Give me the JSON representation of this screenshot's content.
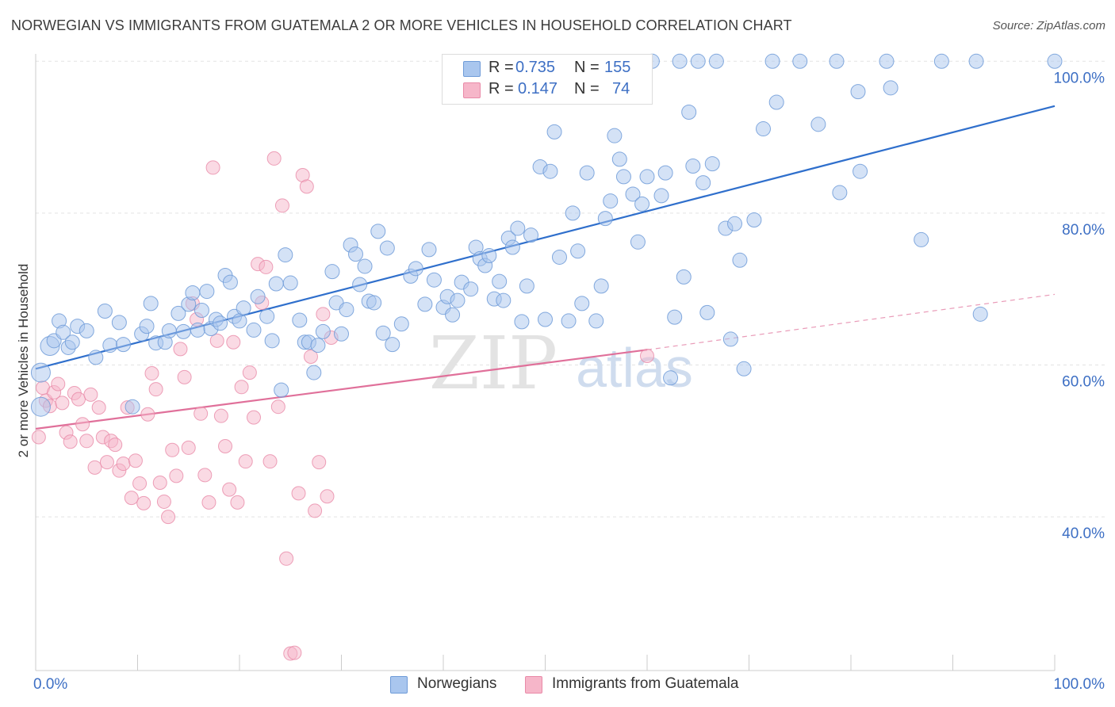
{
  "title": "NORWEGIAN VS IMMIGRANTS FROM GUATEMALA 2 OR MORE VEHICLES IN HOUSEHOLD CORRELATION CHART",
  "source_prefix": "Source:",
  "source_name": "ZipAtlas.com",
  "watermark": {
    "part1": "ZIP",
    "part2": "atlas"
  },
  "legend": {
    "items": [
      {
        "r_label": "R =",
        "r_value": "0.735",
        "n_label": "N =",
        "n_value": "155"
      },
      {
        "r_label": "R =",
        "r_value": "0.147",
        "n_label": "N =",
        "n_value": "74"
      }
    ]
  },
  "bottom_legend": {
    "series1": "Norwegians",
    "series2": "Immigrants from Guatemala"
  },
  "colors": {
    "blue_fill": "#a9c6ee",
    "blue_stroke": "#6f9bd8",
    "blue_line": "#2f6fcc",
    "pink_fill": "#f6b6c9",
    "pink_stroke": "#e98aa8",
    "pink_line": "#e0709a",
    "axis_text": "#3d6fc4"
  },
  "chart_data": {
    "type": "scatter",
    "title": "NORWEGIAN VS IMMIGRANTS FROM GUATEMALA 2 OR MORE VEHICLES IN HOUSEHOLD CORRELATION CHART",
    "xlabel": "",
    "ylabel": "2 or more Vehicles in Household",
    "xlim": [
      0,
      100
    ],
    "ylim": [
      20,
      103
    ],
    "x_tick_labels": [
      "0.0%",
      "100.0%"
    ],
    "y_ticks": [
      40,
      60,
      80,
      100
    ],
    "y_tick_labels": [
      "40.0%",
      "60.0%",
      "80.0%",
      "100.0%"
    ],
    "grid": true,
    "legend_position": "top-center",
    "series": [
      {
        "name": "Norwegians",
        "r": 0.735,
        "n": 155,
        "trend": {
          "x": [
            0,
            100
          ],
          "y": [
            59.5,
            94.1
          ]
        },
        "points": [
          [
            0.5,
            59.0
          ],
          [
            0.5,
            54.5
          ],
          [
            1.4,
            62.5
          ],
          [
            1.8,
            63.2
          ],
          [
            2.3,
            65.8
          ],
          [
            2.7,
            64.3
          ],
          [
            3.2,
            62.3
          ],
          [
            3.6,
            63.0
          ],
          [
            4.1,
            65.1
          ],
          [
            5.0,
            64.5
          ],
          [
            5.9,
            61.0
          ],
          [
            6.8,
            67.1
          ],
          [
            7.3,
            62.6
          ],
          [
            8.2,
            65.6
          ],
          [
            8.6,
            62.7
          ],
          [
            9.5,
            54.5
          ],
          [
            10.4,
            64.1
          ],
          [
            10.9,
            65.1
          ],
          [
            11.3,
            68.1
          ],
          [
            11.8,
            62.9
          ],
          [
            12.7,
            63.0
          ],
          [
            13.1,
            64.5
          ],
          [
            14.0,
            66.8
          ],
          [
            14.5,
            64.4
          ],
          [
            15.0,
            68.0
          ],
          [
            15.4,
            69.5
          ],
          [
            15.9,
            64.6
          ],
          [
            16.3,
            67.2
          ],
          [
            16.8,
            69.7
          ],
          [
            17.2,
            64.8
          ],
          [
            17.7,
            66.0
          ],
          [
            18.1,
            65.5
          ],
          [
            18.6,
            71.8
          ],
          [
            19.1,
            70.9
          ],
          [
            19.5,
            66.4
          ],
          [
            20.0,
            65.8
          ],
          [
            20.4,
            67.5
          ],
          [
            21.4,
            64.6
          ],
          [
            21.8,
            69.0
          ],
          [
            22.7,
            66.4
          ],
          [
            23.2,
            63.2
          ],
          [
            23.6,
            70.7
          ],
          [
            24.1,
            56.7
          ],
          [
            24.5,
            74.5
          ],
          [
            25.0,
            70.8
          ],
          [
            25.9,
            65.9
          ],
          [
            26.4,
            63.0
          ],
          [
            26.8,
            63.0
          ],
          [
            27.3,
            59.0
          ],
          [
            27.7,
            62.6
          ],
          [
            28.2,
            64.4
          ],
          [
            29.1,
            72.3
          ],
          [
            29.5,
            68.2
          ],
          [
            30.0,
            64.1
          ],
          [
            30.5,
            67.3
          ],
          [
            30.9,
            75.8
          ],
          [
            31.4,
            74.6
          ],
          [
            31.8,
            70.6
          ],
          [
            32.3,
            73.0
          ],
          [
            32.7,
            68.4
          ],
          [
            33.2,
            68.2
          ],
          [
            33.6,
            77.6
          ],
          [
            34.1,
            64.2
          ],
          [
            34.5,
            75.4
          ],
          [
            35.0,
            62.7
          ],
          [
            35.9,
            65.4
          ],
          [
            36.8,
            71.7
          ],
          [
            37.3,
            72.7
          ],
          [
            38.2,
            68.0
          ],
          [
            38.6,
            75.2
          ],
          [
            39.1,
            71.2
          ],
          [
            40.0,
            67.6
          ],
          [
            40.4,
            69.0
          ],
          [
            40.9,
            66.6
          ],
          [
            41.4,
            68.5
          ],
          [
            41.8,
            70.9
          ],
          [
            42.7,
            70.0
          ],
          [
            43.2,
            75.5
          ],
          [
            43.6,
            74.0
          ],
          [
            44.1,
            73.1
          ],
          [
            44.5,
            74.4
          ],
          [
            45.0,
            68.7
          ],
          [
            45.5,
            71.0
          ],
          [
            45.9,
            68.5
          ],
          [
            46.4,
            76.7
          ],
          [
            46.8,
            75.5
          ],
          [
            47.3,
            78.0
          ],
          [
            47.7,
            65.7
          ],
          [
            48.2,
            70.4
          ],
          [
            48.6,
            77.1
          ],
          [
            49.5,
            86.1
          ],
          [
            50.0,
            66.0
          ],
          [
            50.5,
            85.5
          ],
          [
            50.9,
            90.7
          ],
          [
            51.4,
            74.2
          ],
          [
            52.3,
            65.8
          ],
          [
            52.7,
            80.0
          ],
          [
            53.2,
            75.0
          ],
          [
            53.6,
            68.1
          ],
          [
            54.1,
            85.3
          ],
          [
            55.0,
            65.8
          ],
          [
            55.5,
            70.4
          ],
          [
            55.9,
            79.3
          ],
          [
            56.4,
            81.6
          ],
          [
            56.8,
            90.2
          ],
          [
            57.3,
            87.1
          ],
          [
            57.7,
            84.8
          ],
          [
            58.6,
            82.5
          ],
          [
            59.1,
            76.2
          ],
          [
            59.5,
            81.2
          ],
          [
            60.0,
            84.8
          ],
          [
            60.5,
            100.0
          ],
          [
            61.4,
            82.3
          ],
          [
            61.8,
            85.3
          ],
          [
            62.3,
            58.3
          ],
          [
            62.7,
            66.3
          ],
          [
            63.2,
            100.0
          ],
          [
            63.6,
            71.6
          ],
          [
            64.1,
            93.3
          ],
          [
            64.5,
            86.2
          ],
          [
            65.0,
            100.0
          ],
          [
            65.5,
            84.0
          ],
          [
            65.9,
            66.9
          ],
          [
            66.4,
            86.5
          ],
          [
            66.8,
            100.0
          ],
          [
            67.7,
            78.0
          ],
          [
            68.2,
            63.4
          ],
          [
            68.6,
            78.6
          ],
          [
            69.1,
            73.8
          ],
          [
            69.5,
            59.5
          ],
          [
            70.5,
            79.1
          ],
          [
            71.4,
            91.1
          ],
          [
            72.3,
            100.0
          ],
          [
            72.7,
            94.6
          ],
          [
            75.0,
            100.0
          ],
          [
            76.8,
            91.7
          ],
          [
            78.6,
            100.0
          ],
          [
            78.9,
            82.7
          ],
          [
            80.7,
            96.0
          ],
          [
            80.9,
            85.5
          ],
          [
            83.5,
            100.0
          ],
          [
            83.9,
            96.5
          ],
          [
            86.9,
            76.5
          ],
          [
            88.9,
            100.0
          ],
          [
            92.3,
            100.0
          ],
          [
            92.7,
            66.7
          ],
          [
            100.0,
            100.0
          ]
        ]
      },
      {
        "name": "Immigrants from Guatemala",
        "r": 0.147,
        "n": 74,
        "trend": {
          "x": [
            0,
            60
          ],
          "y": [
            51.6,
            62.0
          ]
        },
        "trend_dashed": {
          "x": [
            60,
            100
          ],
          "y": [
            62.0,
            69.3
          ]
        },
        "points": [
          [
            0.3,
            50.5
          ],
          [
            0.7,
            57.0
          ],
          [
            1.0,
            55.3
          ],
          [
            1.4,
            54.6
          ],
          [
            1.8,
            56.4
          ],
          [
            2.2,
            57.5
          ],
          [
            2.6,
            55.0
          ],
          [
            3.0,
            51.1
          ],
          [
            3.4,
            49.9
          ],
          [
            3.8,
            56.3
          ],
          [
            4.2,
            55.5
          ],
          [
            4.6,
            52.2
          ],
          [
            5.0,
            50.0
          ],
          [
            5.4,
            56.1
          ],
          [
            5.8,
            46.5
          ],
          [
            6.2,
            54.4
          ],
          [
            6.6,
            50.5
          ],
          [
            7.0,
            47.2
          ],
          [
            7.4,
            50.0
          ],
          [
            7.8,
            49.5
          ],
          [
            8.2,
            46.1
          ],
          [
            8.6,
            47.0
          ],
          [
            9.0,
            54.4
          ],
          [
            9.4,
            42.5
          ],
          [
            9.8,
            47.4
          ],
          [
            10.2,
            44.4
          ],
          [
            10.6,
            41.8
          ],
          [
            11.0,
            53.5
          ],
          [
            11.4,
            58.9
          ],
          [
            11.8,
            56.8
          ],
          [
            12.2,
            44.5
          ],
          [
            12.6,
            42.0
          ],
          [
            13.0,
            40.0
          ],
          [
            13.4,
            48.8
          ],
          [
            13.8,
            45.4
          ],
          [
            14.2,
            62.1
          ],
          [
            14.6,
            58.4
          ],
          [
            15.0,
            49.1
          ],
          [
            15.4,
            68.1
          ],
          [
            15.8,
            66.0
          ],
          [
            16.2,
            53.6
          ],
          [
            16.6,
            45.5
          ],
          [
            17.0,
            41.9
          ],
          [
            17.4,
            86.0
          ],
          [
            17.8,
            63.2
          ],
          [
            18.2,
            53.3
          ],
          [
            18.6,
            49.3
          ],
          [
            19.0,
            43.6
          ],
          [
            19.4,
            63.0
          ],
          [
            19.8,
            41.9
          ],
          [
            20.2,
            57.1
          ],
          [
            20.6,
            47.3
          ],
          [
            21.0,
            59.0
          ],
          [
            21.4,
            53.1
          ],
          [
            21.8,
            73.3
          ],
          [
            22.2,
            68.2
          ],
          [
            22.6,
            72.9
          ],
          [
            23.0,
            47.3
          ],
          [
            23.4,
            87.2
          ],
          [
            23.8,
            54.5
          ],
          [
            24.2,
            81.0
          ],
          [
            24.6,
            34.5
          ],
          [
            25.0,
            22.0
          ],
          [
            25.4,
            22.1
          ],
          [
            25.8,
            43.1
          ],
          [
            26.2,
            85.0
          ],
          [
            26.6,
            83.5
          ],
          [
            27.0,
            61.1
          ],
          [
            27.4,
            40.8
          ],
          [
            27.8,
            47.2
          ],
          [
            28.2,
            66.7
          ],
          [
            28.6,
            42.7
          ],
          [
            29.0,
            63.6
          ],
          [
            60.0,
            61.2
          ]
        ]
      }
    ]
  }
}
